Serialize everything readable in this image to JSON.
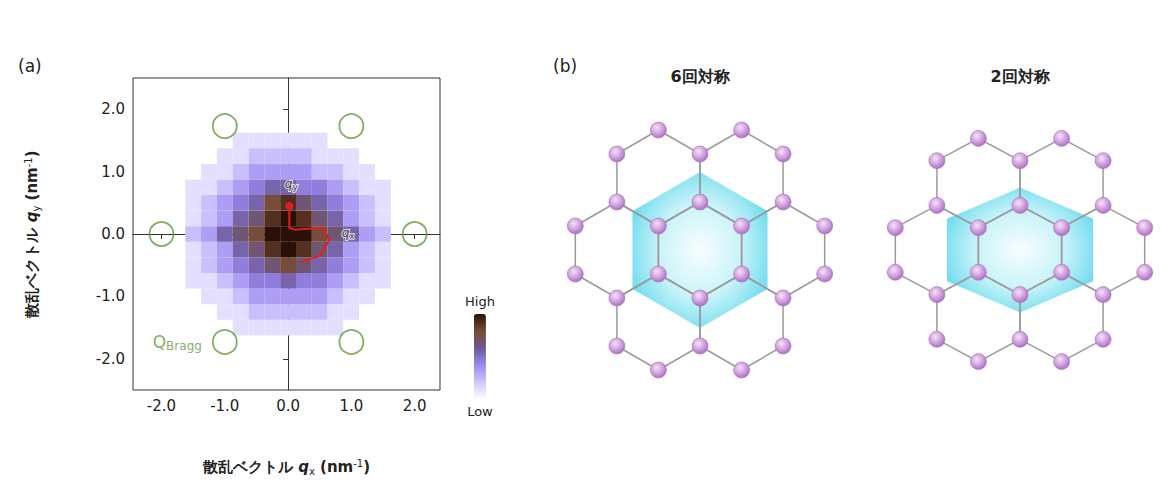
{
  "chart_data": {
    "type": "heatmap",
    "panel": "(a)",
    "xlabel": {
      "main": "散乱ベクトル ",
      "italic": "q",
      "sub": "x",
      "after": " (nm",
      "sup": "-1",
      "end": ")"
    },
    "ylabel": {
      "main": "散乱ベクトル ",
      "italic": "q",
      "sub": "y",
      "after": " (nm",
      "sup": "-1",
      "end": ")"
    },
    "xlim": [
      -2.45,
      2.4
    ],
    "ylim": [
      -2.5,
      2.5
    ],
    "xticks": [
      {
        "value": -2,
        "label": "-2.0"
      },
      {
        "value": -1,
        "label": "-1.0"
      },
      {
        "value": 0,
        "label": "0.0"
      },
      {
        "value": 1,
        "label": "1.0"
      },
      {
        "value": 2,
        "label": "2.0"
      }
    ],
    "yticks": [
      {
        "value": -2,
        "label": "-2.0"
      },
      {
        "value": -1,
        "label": "-1.0"
      },
      {
        "value": 0,
        "label": "0.0"
      },
      {
        "value": 1,
        "label": "1.0"
      },
      {
        "value": 2,
        "label": "2.0"
      }
    ],
    "grid": false,
    "cells": {
      "x": [
        -1.5,
        -1.25,
        -1.0,
        -0.75,
        -0.5,
        -0.25,
        0,
        0.25,
        0.5,
        0.75,
        1.0,
        1.25,
        1.5
      ],
      "y": [
        -1.5,
        -1.25,
        -1.0,
        -0.75,
        -0.5,
        -0.25,
        0,
        0.25,
        0.5,
        0.75,
        1.0,
        1.25,
        1.5
      ],
      "values": [
        [
          0,
          0,
          0,
          1,
          1,
          1,
          1,
          1,
          1,
          1,
          0,
          0,
          0
        ],
        [
          0,
          0,
          1,
          1,
          2,
          2,
          2,
          2,
          2,
          1,
          1,
          0,
          0
        ],
        [
          0,
          1,
          1,
          2,
          3,
          3,
          3,
          3,
          3,
          2,
          1,
          1,
          0
        ],
        [
          1,
          1,
          2,
          3,
          4,
          4,
          5,
          4,
          4,
          3,
          2,
          1,
          1
        ],
        [
          1,
          2,
          3,
          4,
          5,
          6,
          7,
          6,
          5,
          4,
          3,
          2,
          1
        ],
        [
          1,
          2,
          3,
          5,
          6,
          8,
          9,
          8,
          6,
          5,
          3,
          2,
          1
        ],
        [
          2,
          3,
          5,
          6,
          7,
          9,
          9,
          9,
          7,
          6,
          5,
          3,
          2
        ],
        [
          1,
          2,
          3,
          5,
          6,
          8,
          9,
          8,
          6,
          5,
          3,
          2,
          1
        ],
        [
          1,
          2,
          3,
          4,
          5,
          7,
          8,
          6,
          5,
          4,
          3,
          2,
          1
        ],
        [
          1,
          1,
          2,
          3,
          4,
          5,
          5,
          4,
          4,
          3,
          2,
          1,
          1
        ],
        [
          0,
          1,
          1,
          2,
          3,
          3,
          3,
          3,
          2,
          2,
          1,
          1,
          0
        ],
        [
          0,
          0,
          1,
          1,
          2,
          2,
          2,
          2,
          1,
          1,
          1,
          0,
          0
        ],
        [
          0,
          0,
          0,
          1,
          1,
          1,
          1,
          1,
          1,
          0,
          0,
          0,
          0
        ]
      ]
    },
    "colorbar": {
      "range": [
        0,
        9
      ],
      "labels": [
        "High",
        "Low"
      ]
    },
    "bragg": {
      "color": "#5f9a3c",
      "marker": "circle",
      "points": [
        [
          -1,
          1.73
        ],
        [
          1,
          1.73
        ],
        [
          -2,
          0
        ],
        [
          2,
          0
        ],
        [
          -1,
          -1.73
        ],
        [
          1,
          -1.73
        ]
      ],
      "label": {
        "main": "Q",
        "sub": "Bragg"
      }
    },
    "path": {
      "color": "#e02020",
      "marker": "circle",
      "points": [
        [
          0.02,
          0.45
        ],
        [
          0.02,
          0.1
        ],
        [
          0.1,
          0.07
        ],
        [
          0.55,
          0.1
        ],
        [
          0.65,
          -0.1
        ],
        [
          0.5,
          -0.35
        ],
        [
          0.2,
          -0.45
        ]
      ]
    },
    "annotations": [
      {
        "x": 0.05,
        "y": 0.8,
        "main": "q",
        "sub": "y"
      },
      {
        "x": 0.95,
        "y": 0.02,
        "main": "q",
        "sub": "x"
      }
    ]
  },
  "panel_b": {
    "label": "(b)",
    "diagrams": [
      {
        "title": "6回対称"
      },
      {
        "title": "2回対称"
      }
    ]
  }
}
